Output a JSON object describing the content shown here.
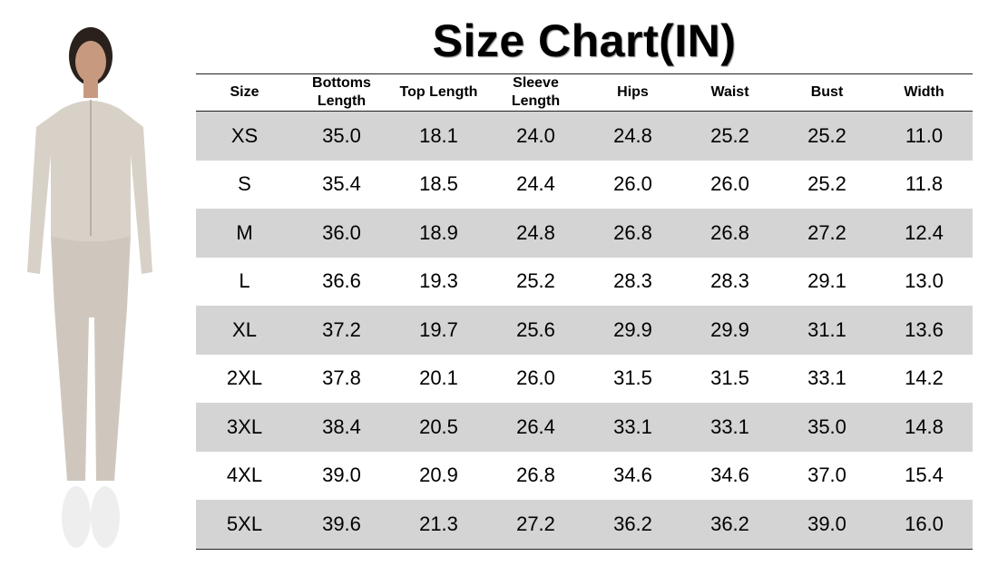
{
  "title": "Size Chart(IN)",
  "table": {
    "header": [
      "Size",
      "Bottoms Length",
      "Top Length",
      "Sleeve Length",
      "Hips",
      "Waist",
      "Bust",
      "Width"
    ],
    "rows": [
      [
        "XS",
        "35.0",
        "18.1",
        "24.0",
        "24.8",
        "25.2",
        "25.2",
        "11.0"
      ],
      [
        "S",
        "35.4",
        "18.5",
        "24.4",
        "26.0",
        "26.0",
        "25.2",
        "11.8"
      ],
      [
        "M",
        "36.0",
        "18.9",
        "24.8",
        "26.8",
        "26.8",
        "27.2",
        "12.4"
      ],
      [
        "L",
        "36.6",
        "19.3",
        "25.2",
        "28.3",
        "28.3",
        "29.1",
        "13.0"
      ],
      [
        "XL",
        "37.2",
        "19.7",
        "25.6",
        "29.9",
        "29.9",
        "31.1",
        "13.6"
      ],
      [
        "2XL",
        "37.8",
        "20.1",
        "26.0",
        "31.5",
        "31.5",
        "33.1",
        "14.2"
      ],
      [
        "3XL",
        "38.4",
        "20.5",
        "26.4",
        "33.1",
        "33.1",
        "35.0",
        "14.8"
      ],
      [
        "4XL",
        "39.0",
        "20.9",
        "26.8",
        "34.6",
        "34.6",
        "37.0",
        "15.4"
      ],
      [
        "5XL",
        "39.6",
        "21.3",
        "27.2",
        "36.2",
        "36.2",
        "39.0",
        "16.0"
      ]
    ]
  }
}
